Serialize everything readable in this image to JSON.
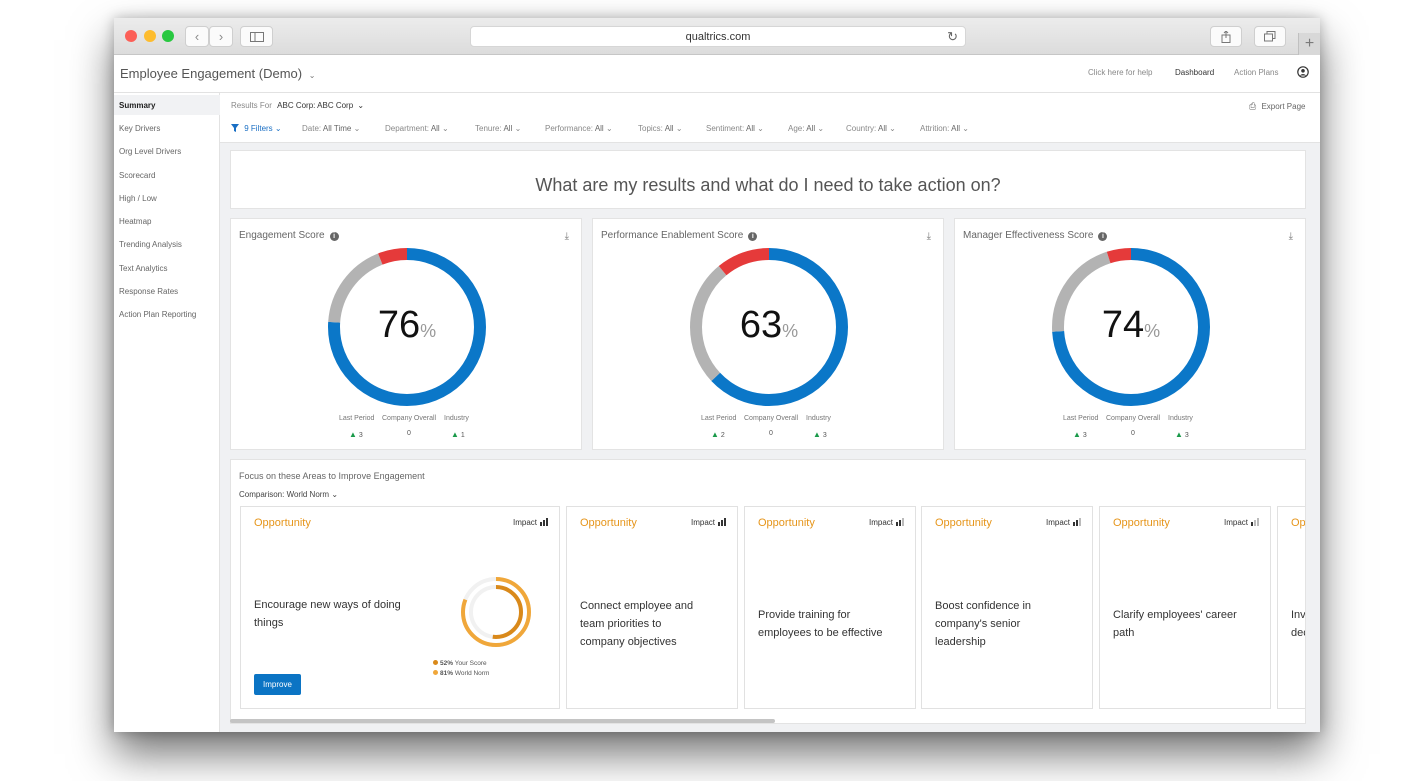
{
  "browser": {
    "url": "qualtrics.com"
  },
  "header": {
    "title": "Employee Engagement (Demo)",
    "help": "Click here for help",
    "dashboard": "Dashboard",
    "action_plans": "Action Plans"
  },
  "sidebar": {
    "items": [
      "Summary",
      "Key Drivers",
      "Org Level Drivers",
      "Scorecard",
      "High / Low",
      "Heatmap",
      "Trending Analysis",
      "Text Analytics",
      "Response Rates",
      "Action Plan Reporting"
    ],
    "active_index": 0
  },
  "results_for": {
    "label": "Results For",
    "value": "ABC Corp:  ABC Corp"
  },
  "export_label": "Export Page",
  "filters_count": "9 Filters",
  "filters": [
    {
      "label": "Date:",
      "value": "All Time"
    },
    {
      "label": "Department:",
      "value": "All"
    },
    {
      "label": "Tenure:",
      "value": "All"
    },
    {
      "label": "Performance:",
      "value": "All"
    },
    {
      "label": "Topics:",
      "value": "All"
    },
    {
      "label": "Sentiment:",
      "value": "All"
    },
    {
      "label": "Age:",
      "value": "All"
    },
    {
      "label": "Country:",
      "value": "All"
    },
    {
      "label": "Attrition:",
      "value": "All"
    }
  ],
  "question": "What are my results and what do I need to take action on?",
  "scores": [
    {
      "title": "Engagement Score",
      "value": "76",
      "percent": 76,
      "red": 6,
      "gray": 18,
      "last_period": "3",
      "company_overall": "0",
      "industry": "1"
    },
    {
      "title": "Performance Enablement Score",
      "value": "63",
      "percent": 63,
      "red": 11,
      "gray": 26,
      "last_period": "2",
      "company_overall": "0",
      "industry": "3"
    },
    {
      "title": "Manager Effectiveness Score",
      "value": "74",
      "percent": 74,
      "red": 5,
      "gray": 21,
      "last_period": "3",
      "company_overall": "0",
      "industry": "3"
    }
  ],
  "cmp_labels": {
    "last_period": "Last Period",
    "company_overall": "Company Overall",
    "industry": "Industry"
  },
  "pct_sign": "%",
  "colors": {
    "blue": "#0b77c8",
    "red": "#e53a3a",
    "gray": "#b3b3b3",
    "orange": "#e6951a",
    "green": "#1a9a4a"
  },
  "focus": {
    "title": "Focus on these Areas to Improve Engagement",
    "comparison": "Comparison: World Norm",
    "opportunity_label": "Opportunity",
    "impact_label": "Impact",
    "improve_label": "Improve",
    "your_score": {
      "value": "52%",
      "label": "Your Score"
    },
    "world_norm": {
      "value": "81%",
      "label": "World Norm"
    },
    "cards": [
      {
        "line1": "Encourage new ways of doing",
        "line2": "things",
        "line3": ""
      },
      {
        "line1": "Connect employee and",
        "line2": "team priorities to",
        "line3": "company objectives"
      },
      {
        "line1": "Provide training for",
        "line2": "employees to be effective",
        "line3": ""
      },
      {
        "line1": "Boost confidence in",
        "line2": "company's senior",
        "line3": "leadership"
      },
      {
        "line1": "Clarify employees' career",
        "line2": "path",
        "line3": ""
      },
      {
        "line1": "Inv",
        "line2": "dec",
        "line3": ""
      }
    ]
  }
}
